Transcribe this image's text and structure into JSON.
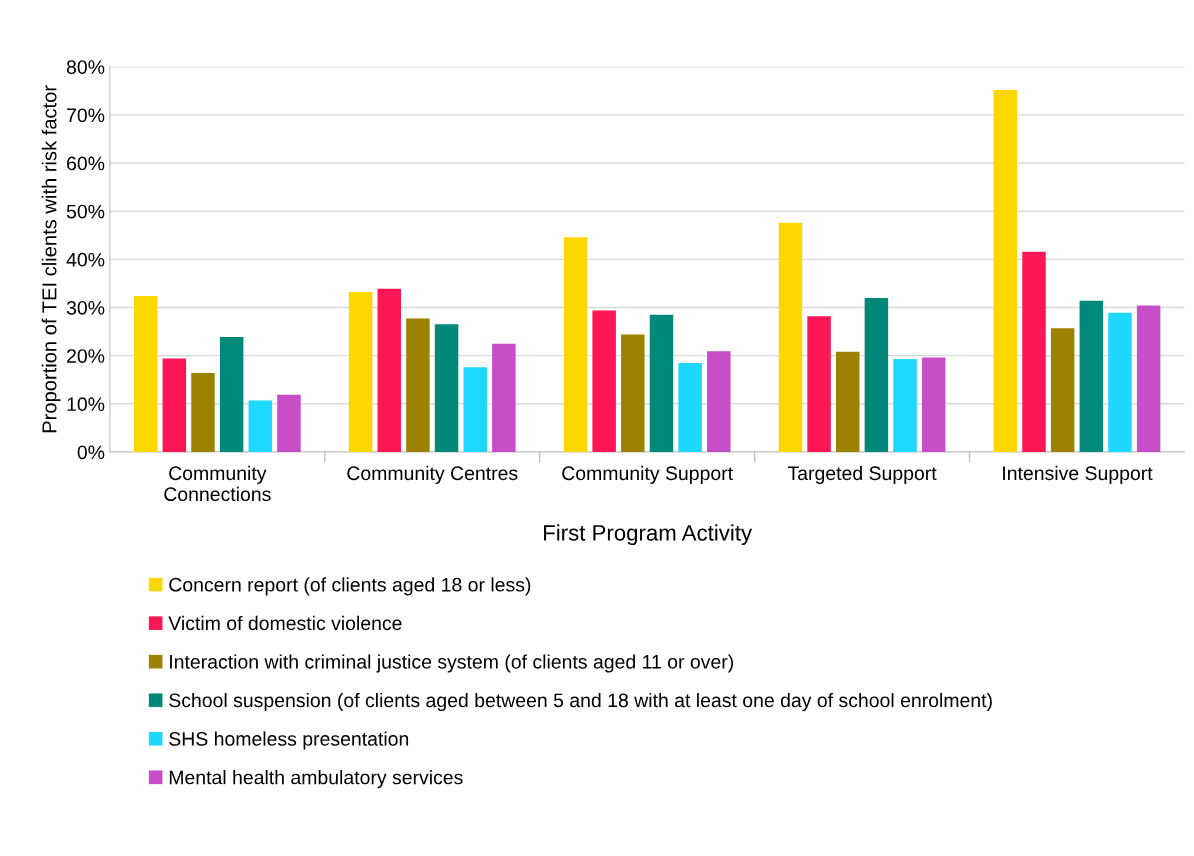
{
  "chart_data": {
    "type": "bar",
    "xlabel": "First Program Activity",
    "ylabel": "Proportion of TEI clients with risk factor",
    "categories": [
      "Community\nConnections",
      "Community Centres",
      "Community Support",
      "Targeted Support",
      "Intensive Support"
    ],
    "series": [
      {
        "name": "Concern report (of clients aged 18 or less)",
        "color": "#ffd700",
        "values": [
          32.4,
          33.2,
          44.6,
          47.6,
          75.2
        ]
      },
      {
        "name": "Victim of domestic violence",
        "color": "#ff1654",
        "values": [
          19.4,
          33.9,
          29.4,
          28.2,
          41.6
        ]
      },
      {
        "name": "Interaction with criminal justice system (of clients aged 11 or over)",
        "color": "#9c8200",
        "values": [
          16.4,
          27.7,
          24.4,
          20.8,
          25.7
        ]
      },
      {
        "name": "School suspension (of clients aged between 5 and 18 with at least one day of school enrolment)",
        "color": "#00897b",
        "values": [
          23.9,
          26.5,
          28.5,
          32.0,
          31.4
        ]
      },
      {
        "name": "SHS homeless presentation",
        "color": "#1ed8ff",
        "values": [
          10.7,
          17.6,
          18.5,
          19.3,
          28.9
        ]
      },
      {
        "name": "Mental health ambulatory services",
        "color": "#c84dc8",
        "values": [
          11.9,
          22.5,
          20.9,
          19.6,
          30.4
        ]
      }
    ],
    "ylim": [
      0,
      80
    ],
    "yticks": [
      {
        "value": 0,
        "label": "0%"
      },
      {
        "value": 10,
        "label": "10%"
      },
      {
        "value": 20,
        "label": "20%"
      },
      {
        "value": 30,
        "label": "30%"
      },
      {
        "value": 40,
        "label": "40%"
      },
      {
        "value": 50,
        "label": "50%"
      },
      {
        "value": 60,
        "label": "60%"
      },
      {
        "value": 70,
        "label": "70%"
      },
      {
        "value": 80,
        "label": "80%"
      }
    ],
    "grid": "y",
    "legend": "bottom"
  }
}
